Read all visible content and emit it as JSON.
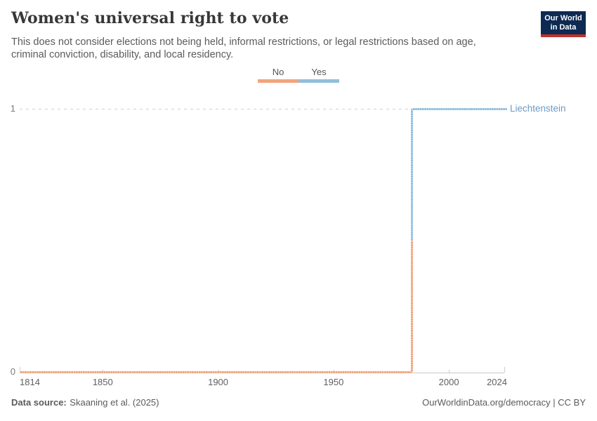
{
  "header": {
    "title": "Women's universal right to vote",
    "subtitle": "This does not consider elections not being held, informal restrictions, or legal restrictions based on age, criminal conviction, disability, and local residency."
  },
  "logo": {
    "line1": "Our World",
    "line2": "in Data",
    "bg_color": "#0E2A52",
    "accent_color": "#BE322B"
  },
  "legend": {
    "items": [
      {
        "label": "No",
        "color": "#F2A47C"
      },
      {
        "label": "Yes",
        "color": "#92BEDC"
      }
    ]
  },
  "chart_data": {
    "type": "line",
    "subtype": "step",
    "title": "Women's universal right to vote",
    "entity": "Liechtenstein",
    "entity_label_color": "#6D9BC3",
    "series": [
      {
        "name": "Liechtenstein",
        "points": [
          {
            "x": 1814,
            "y": 0
          },
          {
            "x": 1984,
            "y": 0
          },
          {
            "x": 1984,
            "y": 1
          },
          {
            "x": 2024,
            "y": 1
          }
        ]
      }
    ],
    "value_labels": {
      "0": "No",
      "1": "Yes"
    },
    "value_colors": {
      "0": "#F2A47C",
      "1": "#92BEDC"
    },
    "transition_year": 1984,
    "xlim": [
      1814,
      2024
    ],
    "ylim": [
      0,
      1
    ],
    "x_ticks": [
      1814,
      1850,
      1900,
      1950,
      2000,
      2024
    ],
    "x_axis_tick_marks": [
      1850,
      1900,
      1950,
      2000
    ],
    "y_ticks": [
      0,
      1
    ],
    "grid": "dashed horizontal gridline at y=1, solid x-axis at y=0",
    "legend_position": "top-center"
  },
  "footer": {
    "source_label": "Data source:",
    "source_value": "Skaaning et al. (2025)",
    "right_text": "OurWorldinData.org/democracy | CC BY"
  }
}
